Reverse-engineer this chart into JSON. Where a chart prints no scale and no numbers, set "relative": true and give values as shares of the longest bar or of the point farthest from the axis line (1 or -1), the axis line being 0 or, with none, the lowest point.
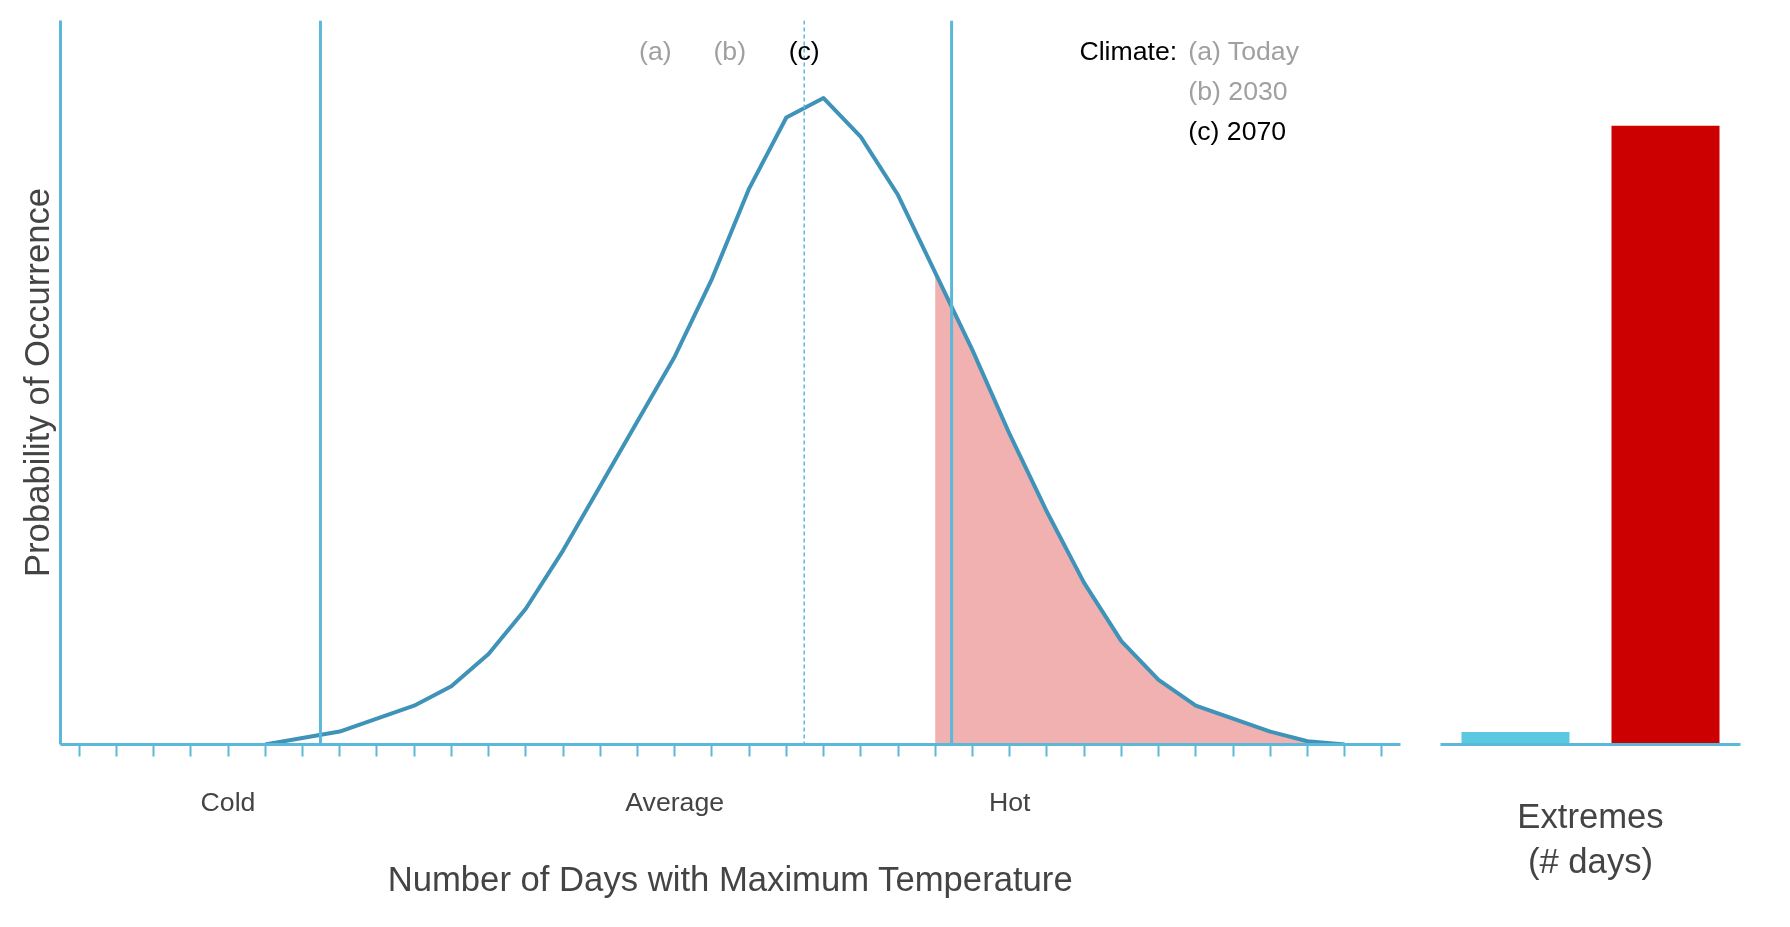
{
  "chart_data": [
    {
      "type": "line",
      "relative": true,
      "tick_labels": "x",
      "grid": false,
      "xlabel": "Number of Days with Maximum Temperature",
      "ylabel": "Probability of Occurrence",
      "categories": [
        null,
        null,
        null,
        null,
        "Cold",
        null,
        null,
        null,
        null,
        null,
        null,
        null,
        null,
        null,
        null,
        null,
        "Average",
        null,
        null,
        null,
        null,
        null,
        null,
        null,
        null,
        "Hot",
        null,
        null,
        null,
        null,
        null,
        null,
        null,
        null,
        null,
        null
      ],
      "series": [
        {
          "type": "area",
          "color": "#f0a8a8",
          "values": [
            null,
            null,
            null,
            null,
            null,
            null,
            null,
            null,
            null,
            null,
            null,
            null,
            null,
            null,
            null,
            null,
            null,
            null,
            null,
            null,
            null,
            null,
            null,
            0.73,
            0.61,
            0.48,
            0.36,
            0.25,
            0.16,
            0.1,
            0.06,
            0.04,
            0.02,
            0.005,
            0.0,
            null
          ]
        },
        {
          "type": "line",
          "color": "#3f93b8",
          "values": [
            null,
            null,
            null,
            null,
            null,
            0.0,
            0.01,
            0.02,
            0.04,
            0.06,
            0.09,
            0.14,
            0.21,
            0.3,
            0.4,
            0.5,
            0.6,
            0.72,
            0.86,
            0.97,
            1.0,
            0.94,
            0.85,
            0.73,
            0.61,
            0.48,
            0.36,
            0.25,
            0.16,
            0.1,
            0.06,
            0.04,
            0.02,
            0.005,
            0.0,
            null
          ]
        }
      ],
      "annotations": [
        "(a)",
        "(b)",
        "(c)",
        "Climate:",
        "(a) Today",
        "(b) 2030",
        "(c) 2070"
      ]
    },
    {
      "type": "bar",
      "relative": true,
      "tick_labels": false,
      "grid": false,
      "xlabel": "Extremes\n(# days)",
      "categories": [
        null,
        null
      ],
      "values": [
        0.02,
        1.0
      ],
      "colors": [
        "#5bc8e0",
        "#cc0000"
      ]
    }
  ]
}
